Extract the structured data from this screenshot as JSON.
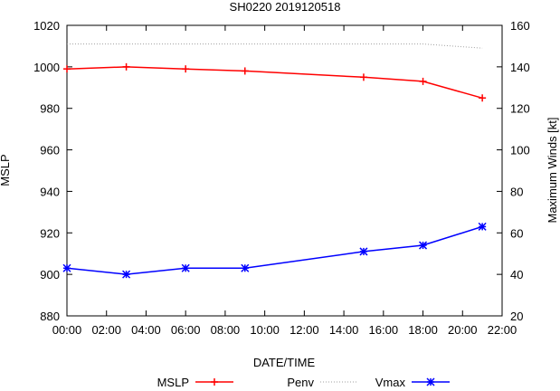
{
  "chart_data": {
    "type": "line",
    "title": "SH0220 2019120518",
    "xlabel": "DATE/TIME",
    "ylabel_left": "MSLP",
    "ylabel_right": "Maximum Winds [kt]",
    "x_range": [
      0,
      22
    ],
    "x_ticks": [
      {
        "v": 0,
        "label": "00:00"
      },
      {
        "v": 2,
        "label": "02:00"
      },
      {
        "v": 4,
        "label": "04:00"
      },
      {
        "v": 6,
        "label": "06:00"
      },
      {
        "v": 8,
        "label": "08:00"
      },
      {
        "v": 10,
        "label": "10:00"
      },
      {
        "v": 12,
        "label": "12:00"
      },
      {
        "v": 14,
        "label": "14:00"
      },
      {
        "v": 16,
        "label": "16:00"
      },
      {
        "v": 18,
        "label": "18:00"
      },
      {
        "v": 20,
        "label": "20:00"
      },
      {
        "v": 22,
        "label": "22:00"
      }
    ],
    "y_left_range": [
      880,
      1020
    ],
    "y_left_ticks": [
      880,
      900,
      920,
      940,
      960,
      980,
      1000,
      1020
    ],
    "y_right_range": [
      20,
      160
    ],
    "y_right_ticks": [
      20,
      40,
      60,
      80,
      100,
      120,
      140,
      160
    ],
    "legend": {
      "position": "bottom",
      "group_label": "MSLP",
      "items": [
        "Penv",
        "Vmax"
      ]
    },
    "series": [
      {
        "name": "MSLP",
        "axis": "left",
        "color": "#ff0000",
        "marker": "plus",
        "style": "solid",
        "x": [
          0,
          3,
          6,
          9,
          15,
          18,
          21
        ],
        "values": [
          999,
          1000,
          999,
          998,
          995,
          993,
          985
        ]
      },
      {
        "name": "Penv",
        "axis": "left",
        "color": "#a0a0a0",
        "marker": "none",
        "style": "dotted",
        "x": [
          0,
          3,
          6,
          9,
          15,
          18,
          21
        ],
        "values": [
          1011,
          1011,
          1011,
          1011,
          1011,
          1011,
          1009
        ]
      },
      {
        "name": "Vmax",
        "axis": "right",
        "color": "#0000ff",
        "marker": "star",
        "style": "solid",
        "x": [
          0,
          3,
          6,
          9,
          15,
          18,
          21
        ],
        "values": [
          43,
          40,
          43,
          43,
          51,
          54,
          63
        ]
      }
    ]
  }
}
